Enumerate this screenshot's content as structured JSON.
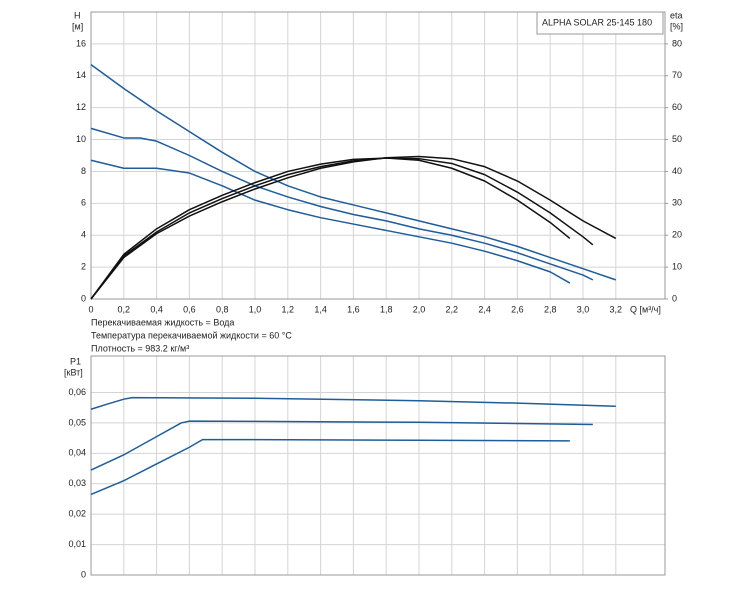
{
  "chart_data": [
    {
      "type": "line",
      "title": "ALPHA SOLAR 25-145  180",
      "ylabel": "H",
      "yunit": "[м]",
      "y2label": "eta",
      "y2unit": "[%]",
      "xlabel": "Q [м³/ч]",
      "annotations": [
        "Перекачиваемая жидкость = Вода",
        "Температура перекачиваемой жидкости = 60 °C",
        "Плотность = 983.2 кг/м³"
      ],
      "xlim": [
        0,
        3.5
      ],
      "xticks": [
        0,
        {
          "value": 0.2,
          "label": "0,2"
        },
        {
          "value": 0.4,
          "label": "0,4"
        },
        {
          "value": 0.6,
          "label": "0,6"
        },
        {
          "value": 0.8,
          "label": "0,8"
        },
        {
          "value": 1.0,
          "label": "1,0"
        },
        {
          "value": 1.2,
          "label": "1,2"
        },
        {
          "value": 1.4,
          "label": "1,4"
        },
        {
          "value": 1.6,
          "label": "1,6"
        },
        {
          "value": 1.8,
          "label": "1,8"
        },
        {
          "value": 2.0,
          "label": "2,0"
        },
        {
          "value": 2.2,
          "label": "2,2"
        },
        {
          "value": 2.4,
          "label": "2,4"
        },
        {
          "value": 2.6,
          "label": "2,6"
        },
        {
          "value": 2.8,
          "label": "2,8"
        },
        {
          "value": 3.0,
          "label": "3,0"
        },
        {
          "value": 3.2,
          "label": "3,2"
        }
      ],
      "ylim": [
        0,
        18
      ],
      "yticks": [
        0,
        2,
        4,
        6,
        8,
        10,
        12,
        14,
        16
      ],
      "y2lim": [
        0,
        90
      ],
      "y2ticks": [
        0,
        10,
        20,
        30,
        40,
        50,
        60,
        70,
        80
      ],
      "grid": true,
      "series": [
        {
          "color": "#1f5c99",
          "x": [
            0,
            0.2,
            0.4,
            0.6,
            0.8,
            1.0,
            1.2,
            1.4,
            1.6,
            1.8,
            2.0,
            2.2,
            2.4,
            2.6,
            2.8,
            3.0,
            3.2
          ],
          "values": [
            14.7,
            13.2,
            11.8,
            10.5,
            9.2,
            8.0,
            7.1,
            6.4,
            5.9,
            5.4,
            4.9,
            4.4,
            3.9,
            3.3,
            2.6,
            1.9,
            1.2
          ]
        },
        {
          "color": "#1f5c99",
          "x": [
            0,
            0.2,
            0.3,
            0.4,
            0.6,
            0.8,
            1.0,
            1.2,
            1.4,
            1.6,
            1.8,
            2.0,
            2.2,
            2.4,
            2.6,
            2.8,
            3.0,
            3.06
          ],
          "values": [
            10.7,
            10.1,
            10.1,
            9.9,
            9.0,
            8.0,
            7.1,
            6.4,
            5.8,
            5.3,
            4.9,
            4.4,
            4.0,
            3.5,
            2.9,
            2.2,
            1.5,
            1.2
          ]
        },
        {
          "color": "#1f5c99",
          "x": [
            0,
            0.2,
            0.4,
            0.6,
            0.8,
            1.0,
            1.2,
            1.4,
            1.6,
            1.8,
            2.0,
            2.2,
            2.4,
            2.6,
            2.8,
            2.92
          ],
          "values": [
            8.7,
            8.2,
            8.2,
            7.9,
            7.1,
            6.2,
            5.6,
            5.1,
            4.7,
            4.3,
            3.9,
            3.5,
            3.0,
            2.4,
            1.7,
            1.0
          ]
        },
        {
          "color": "#111111",
          "axis": "y2",
          "x": [
            0,
            0.2,
            0.4,
            0.6,
            0.8,
            1.0,
            1.2,
            1.4,
            1.6,
            1.8,
            2.0,
            2.2,
            2.4,
            2.6,
            2.8,
            3.0,
            3.2
          ],
          "values": [
            0,
            13,
            20.5,
            26,
            30.5,
            34.5,
            38,
            41,
            43,
            44.3,
            44.7,
            44,
            41.5,
            37,
            31,
            24.5,
            19
          ]
        },
        {
          "color": "#111111",
          "axis": "y2",
          "x": [
            0,
            0.2,
            0.4,
            0.6,
            0.8,
            1.0,
            1.2,
            1.4,
            1.6,
            1.8,
            2.0,
            2.2,
            2.4,
            2.6,
            2.8,
            3.0,
            3.06
          ],
          "values": [
            0,
            13.5,
            21,
            27,
            31.5,
            35.5,
            39,
            41.5,
            43.3,
            44.2,
            44,
            42.5,
            39,
            33.5,
            27,
            19.5,
            17
          ]
        },
        {
          "color": "#111111",
          "axis": "y2",
          "x": [
            0,
            0.2,
            0.4,
            0.6,
            0.8,
            1.0,
            1.2,
            1.4,
            1.6,
            1.8,
            2.0,
            2.2,
            2.4,
            2.6,
            2.8,
            2.92
          ],
          "values": [
            0,
            14,
            22,
            28,
            32.5,
            36.5,
            40,
            42.3,
            43.8,
            44.2,
            43.5,
            41,
            37,
            31,
            24,
            19
          ]
        }
      ]
    },
    {
      "type": "line",
      "ylabel": "P1",
      "yunit": "[кВт]",
      "xlim": [
        0,
        3.5
      ],
      "xticks": [
        0,
        0.2,
        0.4,
        0.6,
        0.8,
        1.0,
        1.2,
        1.4,
        1.6,
        1.8,
        2.0,
        2.2,
        2.4,
        2.6,
        2.8,
        3.0,
        3.2
      ],
      "ylim": [
        0,
        0.072
      ],
      "yticks": [
        0,
        {
          "value": 0.01,
          "label": "0,01"
        },
        {
          "value": 0.02,
          "label": "0,02"
        },
        {
          "value": 0.03,
          "label": "0,03"
        },
        {
          "value": 0.04,
          "label": "0,04"
        },
        {
          "value": 0.05,
          "label": "0,05"
        },
        {
          "value": 0.06,
          "label": "0,06"
        }
      ],
      "grid": true,
      "series": [
        {
          "color": "#1f5c99",
          "x": [
            0,
            0.1,
            0.2,
            0.25,
            1.0,
            2.0,
            2.6,
            3.2
          ],
          "values": [
            0.0545,
            0.0562,
            0.0578,
            0.0583,
            0.0581,
            0.0573,
            0.0565,
            0.0555
          ]
        },
        {
          "color": "#1f5c99",
          "x": [
            0,
            0.2,
            0.4,
            0.55,
            0.6,
            1.0,
            2.0,
            3.06
          ],
          "values": [
            0.0345,
            0.0395,
            0.0455,
            0.05,
            0.0506,
            0.0505,
            0.0502,
            0.0495
          ]
        },
        {
          "color": "#1f5c99",
          "x": [
            0,
            0.2,
            0.4,
            0.6,
            0.68,
            1.0,
            2.0,
            2.92
          ],
          "values": [
            0.0265,
            0.031,
            0.0365,
            0.042,
            0.0445,
            0.0445,
            0.0443,
            0.0441
          ]
        }
      ]
    }
  ]
}
